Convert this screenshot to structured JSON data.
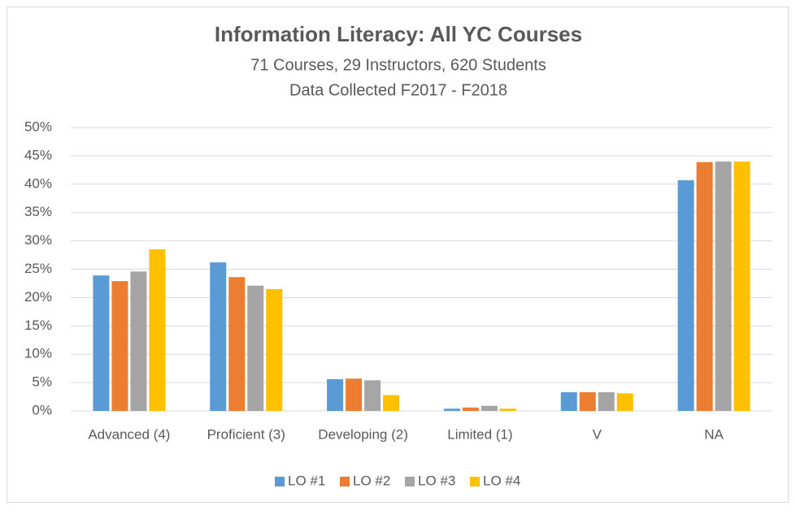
{
  "chart_data": {
    "type": "bar",
    "title": "Information Literacy:  All YC Courses",
    "subtitle": [
      "71 Courses, 29 Instructors, 620 Students",
      "Data Collected F2017 - F2018"
    ],
    "categories": [
      "Advanced (4)",
      "Proficient (3)",
      "Developing (2)",
      "Limited (1)",
      "V",
      "NA"
    ],
    "series": [
      {
        "name": "LO #1",
        "color": "#5b9bd5",
        "values": [
          23.9,
          26.2,
          5.6,
          0.4,
          3.3,
          40.7
        ]
      },
      {
        "name": "LO #2",
        "color": "#ed7d31",
        "values": [
          22.9,
          23.6,
          5.7,
          0.6,
          3.3,
          43.9
        ]
      },
      {
        "name": "LO #3",
        "color": "#a5a5a5",
        "values": [
          24.6,
          22.1,
          5.4,
          0.9,
          3.3,
          44.0
        ]
      },
      {
        "name": "LO #4",
        "color": "#ffc000",
        "values": [
          28.5,
          21.5,
          2.8,
          0.4,
          3.1,
          44.0
        ]
      }
    ],
    "ylim": [
      0,
      50
    ],
    "yticks": [
      {
        "value": 0,
        "label": "0%"
      },
      {
        "value": 5,
        "label": "5%"
      },
      {
        "value": 10,
        "label": "10%"
      },
      {
        "value": 15,
        "label": "15%"
      },
      {
        "value": 20,
        "label": "20%"
      },
      {
        "value": 25,
        "label": "25%"
      },
      {
        "value": 30,
        "label": "30%"
      },
      {
        "value": 35,
        "label": "35%"
      },
      {
        "value": 40,
        "label": "40%"
      },
      {
        "value": 45,
        "label": "45%"
      },
      {
        "value": 50,
        "label": "50%"
      }
    ],
    "grid": true,
    "legend": "bottom"
  }
}
